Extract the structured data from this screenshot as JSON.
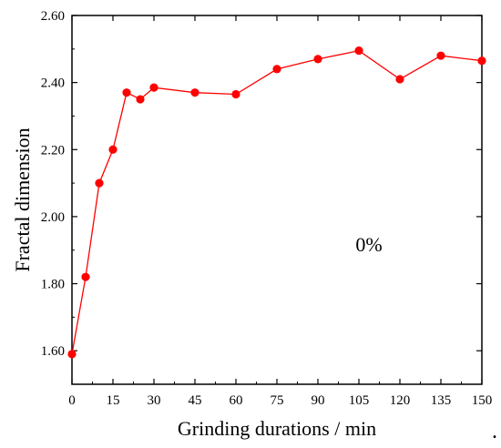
{
  "chart_data": {
    "type": "line",
    "title": "",
    "xlabel": "Grinding durations / min",
    "ylabel": "Fractal dimension",
    "xlim": [
      0,
      150
    ],
    "ylim": [
      1.5,
      2.6
    ],
    "x_ticks": [
      0,
      15,
      30,
      45,
      60,
      75,
      90,
      105,
      120,
      135,
      150
    ],
    "x_tick_labels": [
      "0",
      "15",
      "30",
      "45",
      "60",
      "75",
      "90",
      "105",
      "120",
      "135",
      "150"
    ],
    "y_ticks": [
      1.6,
      1.8,
      2.0,
      2.2,
      2.4,
      2.6
    ],
    "y_tick_labels": [
      "1.60",
      "1.80",
      "2.00",
      "2.20",
      "2.40",
      "2.60"
    ],
    "grid": false,
    "annotation": "0%",
    "trailing_mark": ".",
    "series": [
      {
        "color": "#ff0000",
        "x": [
          0,
          5,
          10,
          15,
          20,
          25,
          30,
          45,
          60,
          75,
          90,
          105,
          120,
          135,
          150
        ],
        "values": [
          1.59,
          1.82,
          2.1,
          2.2,
          2.37,
          2.35,
          2.385,
          2.37,
          2.365,
          2.44,
          2.47,
          2.495,
          2.41,
          2.48,
          2.465
        ]
      }
    ]
  }
}
